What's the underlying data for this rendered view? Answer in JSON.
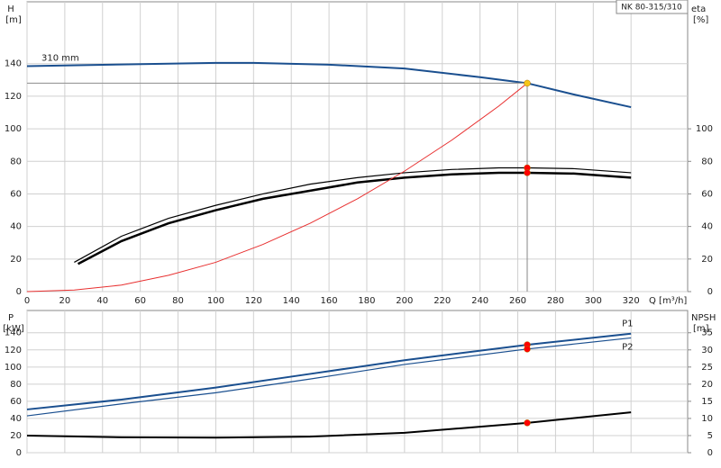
{
  "chart_data": [
    {
      "type": "line",
      "title": "NK 80-315/310",
      "xlim": [
        0,
        350
      ],
      "xticks": [
        0,
        20,
        40,
        60,
        80,
        100,
        120,
        140,
        160,
        180,
        200,
        220,
        240,
        260,
        280,
        300,
        320
      ],
      "xlabel": "Q [m³/h]",
      "xtick_labels": true,
      "ylabel": "H",
      "yunit": "[m]",
      "ylim": [
        0,
        178
      ],
      "yticks": [
        0,
        20,
        40,
        60,
        80,
        100,
        120,
        140
      ],
      "y2label": "eta",
      "y2unit": "[%]",
      "y2lim": [
        0,
        178
      ],
      "y2ticks": [
        0,
        20,
        40,
        60,
        80,
        100
      ],
      "grid": true,
      "series": [
        {
          "name": "310 mm",
          "label_at": "start",
          "color": "#1a4f8f",
          "width": 2,
          "x": [
            0,
            50,
            100,
            120,
            160,
            200,
            240,
            265,
            290,
            320
          ],
          "values": [
            138.5,
            139.5,
            140.5,
            140.5,
            139.4,
            137,
            131.7,
            128,
            121,
            113.3
          ]
        },
        {
          "axis": "y2",
          "color": "#000000",
          "width": 1.2,
          "x": [
            25,
            50,
            75,
            100,
            125,
            150,
            175,
            200,
            225,
            250,
            265,
            290,
            320
          ],
          "values": [
            18,
            34,
            45,
            53,
            60,
            66,
            70,
            73,
            75,
            76,
            76,
            75.5,
            73
          ]
        },
        {
          "axis": "y2",
          "color": "#000000",
          "width": 2.5,
          "x": [
            27,
            50,
            75,
            100,
            125,
            150,
            175,
            200,
            225,
            250,
            265,
            290,
            320
          ],
          "values": [
            17,
            31,
            42,
            50,
            57,
            62,
            67,
            70,
            72,
            73,
            73,
            72.5,
            70
          ]
        },
        {
          "color": "#e83030",
          "width": 1,
          "x": [
            0,
            25,
            50,
            75,
            100,
            125,
            150,
            175,
            200,
            225,
            250,
            265
          ],
          "values": [
            0,
            1,
            4,
            10,
            18,
            29,
            42,
            57,
            74,
            93,
            114,
            128
          ]
        }
      ],
      "markers": [
        {
          "x": 265,
          "y": 128,
          "color": "#f5c518",
          "guides": true
        },
        {
          "x": 265,
          "y": 76,
          "color": "#ff0000",
          "axis": "y2"
        },
        {
          "x": 265,
          "y": 73,
          "color": "#ff0000",
          "axis": "y2"
        }
      ]
    },
    {
      "type": "line",
      "xlim": [
        0,
        350
      ],
      "xticks": [
        0,
        20,
        40,
        60,
        80,
        100,
        120,
        140,
        160,
        180,
        200,
        220,
        240,
        260,
        280,
        300,
        320
      ],
      "xtick_labels": false,
      "ylabel": "P",
      "yunit": "[kW]",
      "ylim": [
        0,
        166
      ],
      "yticks": [
        0,
        20,
        40,
        60,
        80,
        100,
        120,
        140
      ],
      "y2label": "NPSH",
      "y2unit": "[m]",
      "y2lim": [
        0,
        41.5
      ],
      "y2ticks": [
        0,
        5,
        10,
        15,
        20,
        25,
        30,
        35
      ],
      "grid": true,
      "series": [
        {
          "name": "P1",
          "label_at": "end",
          "color": "#1a4f8f",
          "width": 2,
          "x": [
            0,
            50,
            100,
            150,
            200,
            265,
            320
          ],
          "values": [
            50.5,
            62,
            76,
            92,
            108,
            126,
            139
          ]
        },
        {
          "name": "P2",
          "label_at": "end",
          "color": "#1a4f8f",
          "width": 1.2,
          "x": [
            0,
            50,
            100,
            150,
            200,
            265,
            320
          ],
          "values": [
            43,
            57,
            70,
            86,
            103,
            121,
            134
          ]
        },
        {
          "axis": "y2",
          "color": "#000000",
          "width": 2,
          "x": [
            0,
            50,
            100,
            150,
            200,
            265,
            320
          ],
          "values": [
            5,
            4.5,
            4.4,
            4.7,
            5.8,
            8.7,
            11.8
          ]
        }
      ],
      "markers": [
        {
          "x": 265,
          "y": 126,
          "color": "#ff0000"
        },
        {
          "x": 265,
          "y": 121,
          "color": "#ff0000"
        },
        {
          "x": 265,
          "y": 8.7,
          "color": "#ff0000",
          "axis": "y2"
        }
      ]
    }
  ]
}
